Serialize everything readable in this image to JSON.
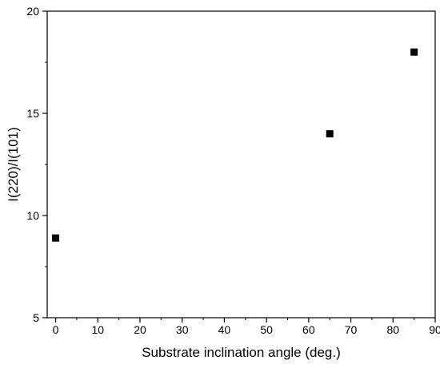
{
  "chart_data": {
    "type": "scatter",
    "xlabel": "Substrate inclination angle (deg.)",
    "ylabel": "I(220)/I(101)",
    "xlim": [
      -2,
      90
    ],
    "ylim": [
      5,
      20
    ],
    "xticks": [
      0,
      10,
      20,
      30,
      40,
      50,
      60,
      70,
      80,
      90
    ],
    "yticks": [
      5,
      10,
      15,
      20
    ],
    "marker": "square",
    "marker_color": "#000000",
    "grid": false,
    "points": [
      {
        "x": 0,
        "y": 8.9
      },
      {
        "x": 65,
        "y": 14.0
      },
      {
        "x": 85,
        "y": 18.0
      }
    ]
  }
}
